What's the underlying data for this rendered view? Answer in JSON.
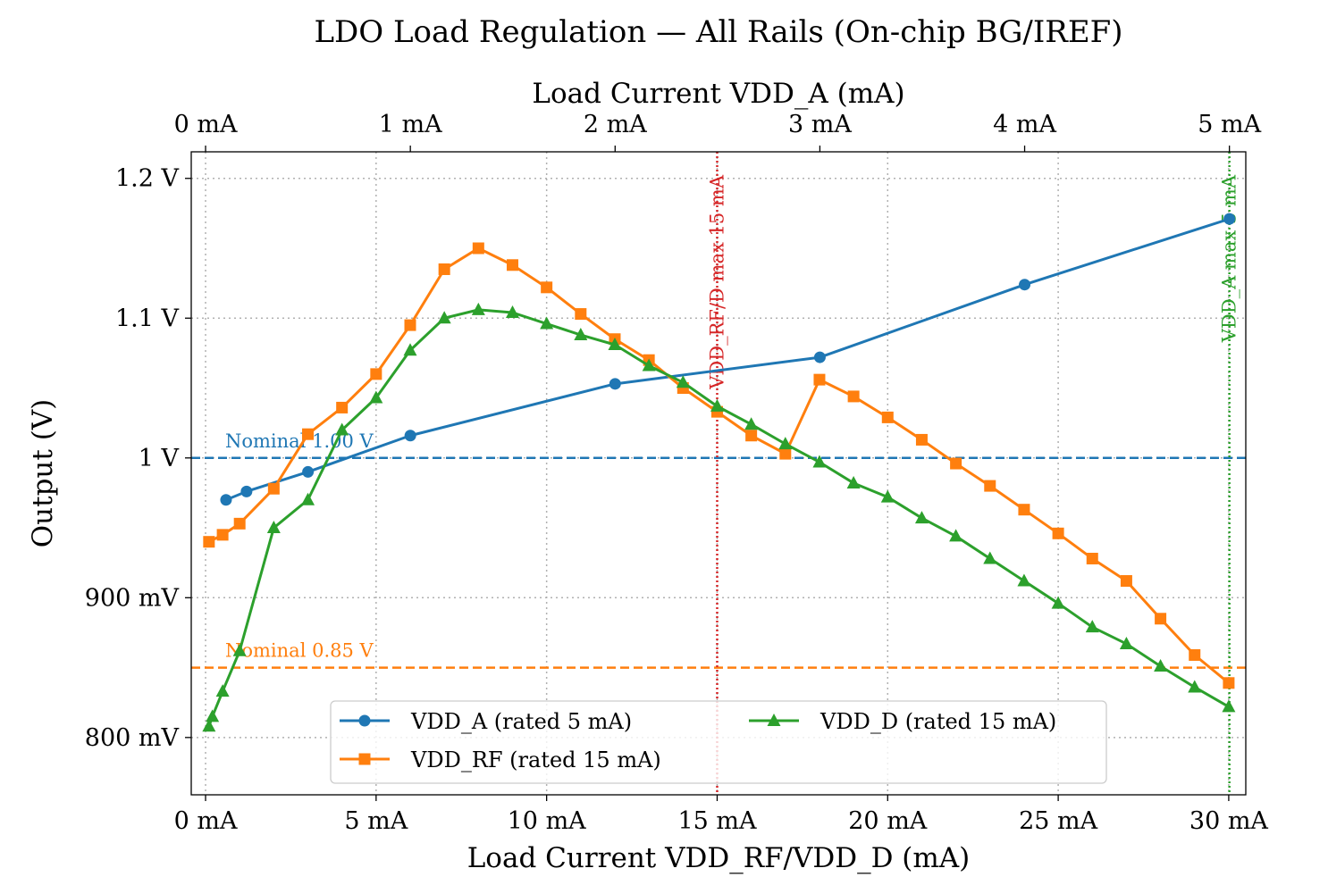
{
  "chart_data": {
    "type": "line",
    "title": "LDO Load Regulation — All Rails (On-chip BG/IREF)",
    "xlabel": "Load Current VDD_RF/VDD_D (mA)",
    "xlabel_top": "Load Current VDD_A (mA)",
    "ylabel": "Output (V)",
    "xlim": [
      -0.42,
      30.5
    ],
    "xlim_top": [
      -0.07,
      5.08
    ],
    "ylim": [
      0.759,
      1.219
    ],
    "grid": true,
    "legend_placement": "lower-center",
    "x_ticks": [
      0,
      5,
      10,
      15,
      20,
      25,
      30
    ],
    "x_tick_labels": [
      "0 mA",
      "5 mA",
      "10 mA",
      "15 mA",
      "20 mA",
      "25 mA",
      "30 mA"
    ],
    "x_top_ticks": [
      0,
      1,
      2,
      3,
      4,
      5
    ],
    "x_top_tick_labels": [
      "0 mA",
      "1 mA",
      "2 mA",
      "3 mA",
      "4 mA",
      "5 mA"
    ],
    "y_ticks": [
      0.8,
      0.9,
      1.0,
      1.1,
      1.2
    ],
    "y_tick_labels": [
      "800 mV",
      "900 mV",
      "1 V",
      "1.1 V",
      "1.2 V"
    ],
    "series": [
      {
        "name": "VDD_A (rated 5 mA)",
        "axis": "top",
        "color": "#1f77b4",
        "marker": "circle",
        "x": [
          0.1,
          0.2,
          0.5,
          1,
          2,
          3,
          4,
          5
        ],
        "y": [
          0.97,
          0.976,
          0.99,
          1.016,
          1.053,
          1.072,
          1.124,
          1.171
        ]
      },
      {
        "name": "VDD_RF (rated 15 mA)",
        "axis": "bottom",
        "color": "#ff7f0e",
        "marker": "square",
        "x": [
          0.1,
          0.5,
          1,
          2,
          3,
          4,
          5,
          6,
          7,
          8,
          9,
          10,
          11,
          12,
          13,
          14,
          15,
          16,
          17,
          18,
          19,
          20,
          21,
          22,
          23,
          24,
          25,
          26,
          27,
          28,
          29,
          30
        ],
        "y": [
          0.94,
          0.945,
          0.953,
          0.978,
          1.017,
          1.036,
          1.06,
          1.095,
          1.135,
          1.15,
          1.138,
          1.122,
          1.103,
          1.085,
          1.07,
          1.05,
          1.033,
          1.016,
          1.003,
          1.056,
          1.044,
          1.029,
          1.013,
          0.996,
          0.98,
          0.963,
          0.946,
          0.928,
          0.912,
          0.885,
          0.859,
          0.839
        ]
      },
      {
        "name": "VDD_D (rated 15 mA)",
        "axis": "bottom",
        "color": "#2ca02c",
        "marker": "triangle",
        "x": [
          0.1,
          0.2,
          0.5,
          1,
          2,
          3,
          4,
          5,
          6,
          7,
          8,
          9,
          10,
          11,
          12,
          13,
          14,
          15,
          16,
          17,
          18,
          19,
          20,
          21,
          22,
          23,
          24,
          25,
          26,
          27,
          28,
          29,
          30
        ],
        "y": [
          0.808,
          0.815,
          0.833,
          0.862,
          0.95,
          0.97,
          1.02,
          1.043,
          1.077,
          1.1,
          1.106,
          1.104,
          1.096,
          1.088,
          1.081,
          1.066,
          1.054,
          1.037,
          1.024,
          1.01,
          0.997,
          0.982,
          0.972,
          0.957,
          0.944,
          0.928,
          0.912,
          0.896,
          0.879,
          0.867,
          0.851,
          0.836,
          0.822
        ]
      }
    ],
    "hlines": [
      {
        "y": 1.0,
        "label": "Nominal 1.00 V",
        "color": "#1f77b4",
        "style": "dashed"
      },
      {
        "y": 0.85,
        "label": "Nominal 0.85 V",
        "color": "#ff7f0e",
        "style": "dashed"
      }
    ],
    "vlines": [
      {
        "x": 15,
        "axis": "bottom",
        "label": "VDD_RF/D max 15 mA",
        "color": "#d62728",
        "style": "dotted"
      },
      {
        "x": 5,
        "axis": "top",
        "label": "VDD_A max 5 mA",
        "color": "#2ca02c",
        "style": "dotted"
      }
    ]
  }
}
